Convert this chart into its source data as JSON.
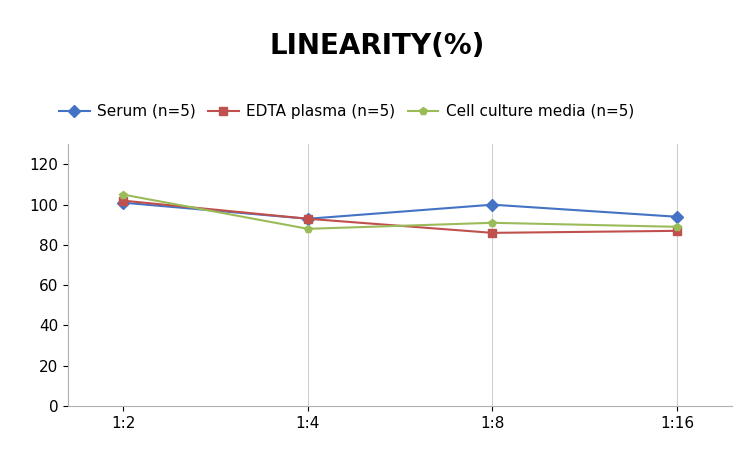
{
  "title": "LINEARITY(%)",
  "title_fontsize": 20,
  "title_fontweight": "bold",
  "x_labels": [
    "1:2",
    "1:4",
    "1:8",
    "1:16"
  ],
  "x_positions": [
    0,
    1,
    2,
    3
  ],
  "series": [
    {
      "label": "Serum (n=5)",
      "color": "#4472c4",
      "marker": "D",
      "markersize": 6,
      "values": [
        101,
        93,
        100,
        94
      ]
    },
    {
      "label": "EDTA plasma (n=5)",
      "color": "#c0504d",
      "marker": "s",
      "markersize": 6,
      "values": [
        102,
        93,
        86,
        87
      ]
    },
    {
      "label": "Cell culture media (n=5)",
      "color": "#9bbb59",
      "marker": "p",
      "markersize": 6,
      "values": [
        105,
        88,
        91,
        89
      ]
    }
  ],
  "ylim": [
    0,
    130
  ],
  "yticks": [
    0,
    20,
    40,
    60,
    80,
    100,
    120
  ],
  "vline_color": "#d0d0d0",
  "background_color": "#ffffff",
  "legend_fontsize": 11,
  "tick_fontsize": 11,
  "spine_color": "#b0b0b0"
}
